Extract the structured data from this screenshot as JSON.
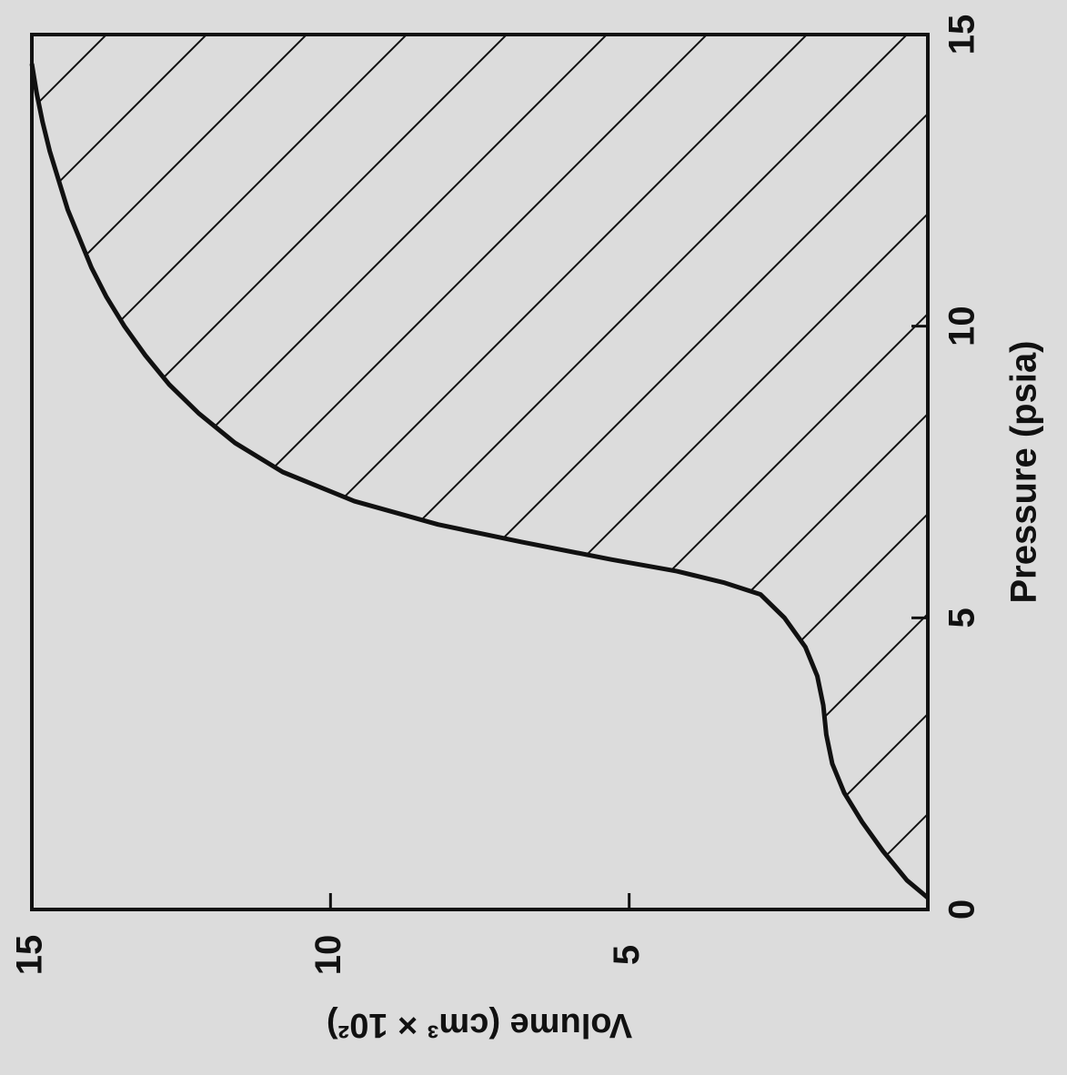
{
  "chart_data": {
    "type": "area",
    "title": "",
    "xlabel": "Pressure (psia)",
    "ylabel": "Volume (cm³ × 10²)",
    "xlim": [
      0,
      15
    ],
    "ylim": [
      0,
      15
    ],
    "x_ticks": [
      "0",
      "5",
      "10",
      "15"
    ],
    "y_ticks": [
      "5",
      "10",
      "15"
    ],
    "grid": false,
    "fill_pattern": "diagonal-hatch",
    "series": [
      {
        "x": [
          0.2,
          0.5,
          1.0,
          1.5,
          2.0,
          2.5,
          3.0,
          3.5,
          4.0,
          4.5,
          5.0,
          5.4,
          5.6,
          5.8,
          6.0,
          6.3,
          6.6,
          7.0,
          7.5,
          8.0,
          8.5,
          9.0,
          9.5,
          10.0,
          10.5,
          11.0,
          11.5,
          12.0,
          12.5,
          13.0,
          13.5,
          14.0,
          14.5
        ],
        "y": [
          0.0,
          0.35,
          0.75,
          1.1,
          1.4,
          1.6,
          1.7,
          1.75,
          1.85,
          2.05,
          2.4,
          2.8,
          3.4,
          4.2,
          5.3,
          6.8,
          8.2,
          9.6,
          10.8,
          11.6,
          12.2,
          12.7,
          13.1,
          13.45,
          13.75,
          14.0,
          14.2,
          14.4,
          14.55,
          14.7,
          14.82,
          14.92,
          15.0
        ]
      }
    ],
    "colors": {
      "background": "#dcdcdc",
      "ink": "#111111"
    }
  }
}
